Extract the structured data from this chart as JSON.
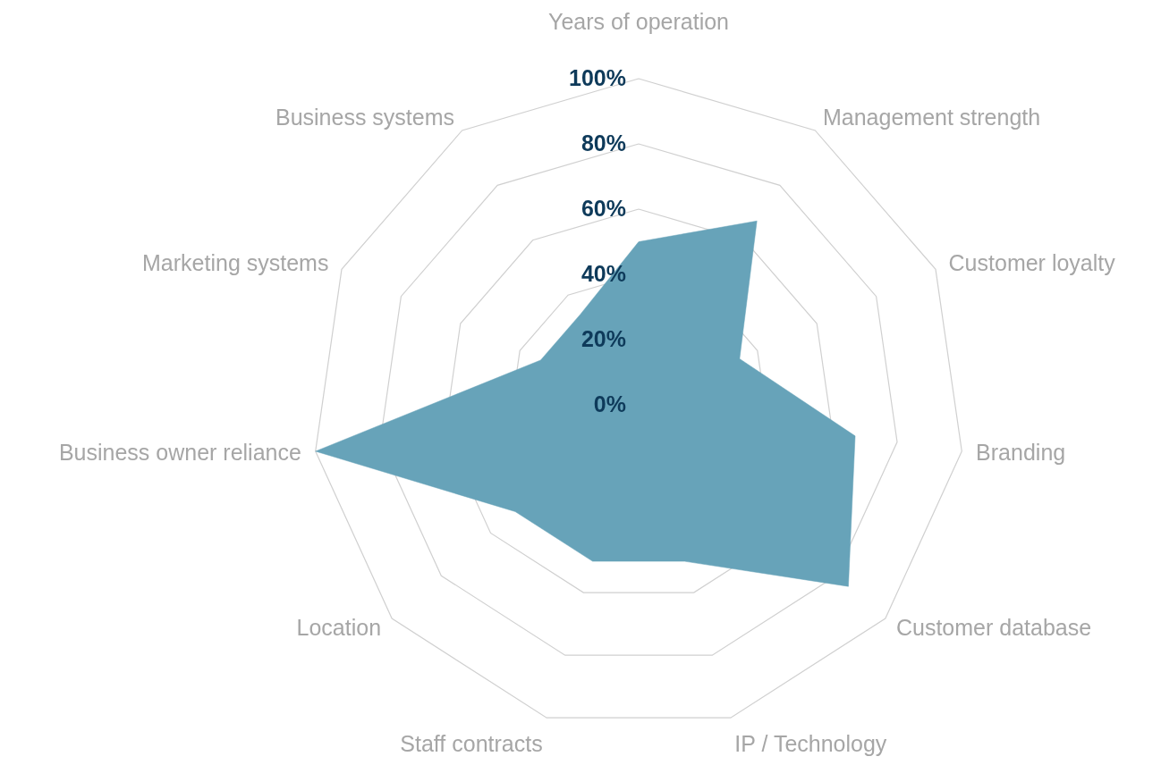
{
  "chart_data": {
    "type": "radar",
    "categories": [
      "Years of operation",
      "Management strength",
      "Customer loyalty",
      "Branding",
      "Customer database",
      "IP / Technology",
      "Staff contracts",
      "Location",
      "Business owner reliance",
      "Marketing systems",
      "Business systems"
    ],
    "series": [
      {
        "color": "#67a3b9",
        "values": [
          50,
          67,
          34,
          67,
          85,
          50,
          50,
          50,
          100,
          33,
          33
        ]
      }
    ],
    "ylim": [
      0,
      100
    ],
    "yticks": [
      {
        "value": 0,
        "label": "0%"
      },
      {
        "value": 20,
        "label": "20%"
      },
      {
        "value": 40,
        "label": "40%"
      },
      {
        "value": 60,
        "label": "60%"
      },
      {
        "value": 80,
        "label": "80%"
      },
      {
        "value": 100,
        "label": "100%"
      }
    ],
    "grid": true
  }
}
